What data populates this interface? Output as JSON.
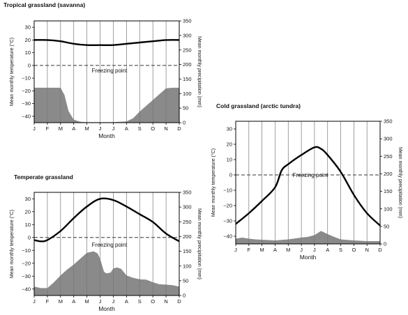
{
  "chart_data": [
    {
      "type": "line",
      "title": "Tropical grassland (savanna)",
      "xlabel": "Month",
      "ylabel_left": "Mean monthly temperature (°C)",
      "ylabel_right": "Mean monthly precipitation (mm)",
      "annotation": "Freezing point",
      "categories": [
        "J",
        "F",
        "M",
        "A",
        "M",
        "J",
        "J",
        "A",
        "S",
        "O",
        "N",
        "D"
      ],
      "temp_ylim": [
        -45,
        35
      ],
      "temp_ticks": [
        30,
        20,
        10,
        0,
        -10,
        -20,
        -30,
        -40
      ],
      "precip_ylim": [
        0,
        350
      ],
      "precip_ticks": [
        350,
        300,
        250,
        200,
        150,
        100,
        50,
        0
      ],
      "series": [
        {
          "kind": "temperature",
          "x": [
            0,
            1,
            2,
            3,
            4,
            5,
            6,
            7,
            8,
            9,
            10,
            11
          ],
          "values": [
            20,
            20,
            19,
            17,
            16,
            16,
            16,
            17,
            18,
            19,
            20,
            20
          ]
        },
        {
          "kind": "precipitation",
          "x": [
            0,
            1,
            2,
            2.3,
            2.6,
            3,
            3.5,
            4,
            5,
            6,
            7,
            7.5,
            8,
            8.5,
            9,
            9.5,
            10,
            10.5,
            11
          ],
          "values": [
            120,
            120,
            120,
            95,
            40,
            10,
            3,
            2,
            2,
            2,
            4,
            15,
            38,
            58,
            78,
            98,
            118,
            120,
            120
          ]
        }
      ]
    },
    {
      "type": "line",
      "title": "Temperate grassland",
      "xlabel": "Month",
      "ylabel_left": "Mean monthly temperature (°C)",
      "ylabel_right": "Mean monthly precipitation (mm)",
      "annotation": "Freezing point",
      "categories": [
        "J",
        "F",
        "M",
        "A",
        "M",
        "J",
        "J",
        "A",
        "S",
        "O",
        "N",
        "D"
      ],
      "temp_ylim": [
        -45,
        35
      ],
      "temp_ticks": [
        30,
        20,
        10,
        0,
        -10,
        -20,
        -30,
        -40
      ],
      "precip_ylim": [
        0,
        350
      ],
      "precip_ticks": [
        350,
        300,
        250,
        200,
        150,
        100,
        50,
        0
      ],
      "series": [
        {
          "kind": "temperature",
          "x": [
            0,
            0.5,
            1,
            2,
            3,
            4,
            5,
            6,
            7,
            8,
            9,
            10,
            11
          ],
          "values": [
            -2,
            -3,
            -2,
            5,
            15,
            24,
            30,
            29,
            24,
            18,
            12,
            3,
            -3
          ]
        },
        {
          "kind": "precipitation",
          "x": [
            0,
            0.5,
            1,
            1.5,
            2,
            2.5,
            3,
            3.5,
            4,
            4.5,
            4.8,
            5,
            5.3,
            5.5,
            5.8,
            6,
            6.3,
            6.6,
            7,
            7.5,
            8,
            8.5,
            9,
            9.5,
            10,
            10.5,
            11
          ],
          "values": [
            30,
            25,
            25,
            45,
            68,
            88,
            105,
            125,
            145,
            150,
            143,
            125,
            80,
            75,
            78,
            92,
            95,
            90,
            68,
            60,
            55,
            54,
            45,
            38,
            37,
            35,
            30
          ]
        }
      ]
    },
    {
      "type": "line",
      "title": "Cold grassland (arctic tundra)",
      "xlabel": "Month",
      "ylabel_left": "Mean monthly temperature (°C)",
      "ylabel_right": "Mean monthly precipitation (mm)",
      "annotation": "Freezing point",
      "categories": [
        "J",
        "F",
        "M",
        "A",
        "M",
        "J",
        "J",
        "A",
        "S",
        "O",
        "N",
        "D"
      ],
      "temp_ylim": [
        -45,
        35
      ],
      "temp_ticks": [
        30,
        20,
        10,
        0,
        -10,
        -20,
        -30,
        -40
      ],
      "precip_ylim": [
        0,
        350
      ],
      "precip_ticks": [
        350,
        300,
        250,
        200,
        150,
        100,
        50,
        0
      ],
      "series": [
        {
          "kind": "temperature",
          "x": [
            0,
            1,
            2,
            3,
            3.5,
            4,
            5,
            6,
            6.5,
            7,
            8,
            9,
            10,
            11
          ],
          "values": [
            -32,
            -25,
            -17,
            -8,
            3,
            7,
            13,
            18,
            17,
            13,
            2,
            -13,
            -25,
            -33
          ]
        },
        {
          "kind": "precipitation",
          "x": [
            0,
            0.5,
            1,
            1.5,
            2,
            3,
            4,
            5,
            5.5,
            6,
            6.5,
            7,
            7.5,
            8,
            9,
            10,
            11
          ],
          "values": [
            15,
            18,
            15,
            13,
            12,
            10,
            13,
            18,
            20,
            25,
            37,
            28,
            20,
            13,
            10,
            8,
            8
          ]
        }
      ]
    }
  ]
}
